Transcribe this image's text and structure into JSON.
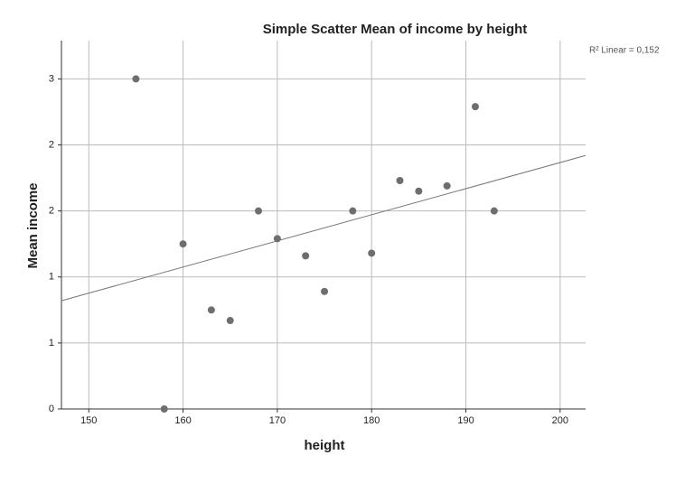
{
  "chart_data": {
    "type": "scatter",
    "title": "Simple Scatter Mean of income by height",
    "x_label": "height",
    "y_label": "Mean income",
    "annotation": "R² Linear = 0,152",
    "x": [
      155,
      158,
      160,
      163,
      165,
      168,
      170,
      173,
      175,
      178,
      180,
      183,
      185,
      188,
      191,
      193
    ],
    "values": [
      2.5,
      0,
      1.25,
      0.75,
      0.67,
      1.5,
      1.29,
      1.16,
      0.89,
      1.5,
      1.18,
      1.73,
      1.65,
      1.69,
      2.29,
      1.5
    ],
    "color": "#6e6e6e",
    "fit_line": {
      "x": [
        147.1,
        202.7
      ],
      "y": [
        0.82,
        1.92
      ],
      "color": "#777777"
    },
    "xlim": [
      147.1,
      202.7
    ],
    "ylim": [
      0,
      2.79
    ],
    "xticks": [
      150,
      160,
      170,
      180,
      190,
      200
    ],
    "yticks": [
      0,
      {
        "value": 0.5,
        "label": "1"
      },
      1,
      {
        "value": 1.5,
        "label": "2"
      },
      2,
      {
        "value": 2.5,
        "label": "3"
      }
    ],
    "grid": true
  }
}
